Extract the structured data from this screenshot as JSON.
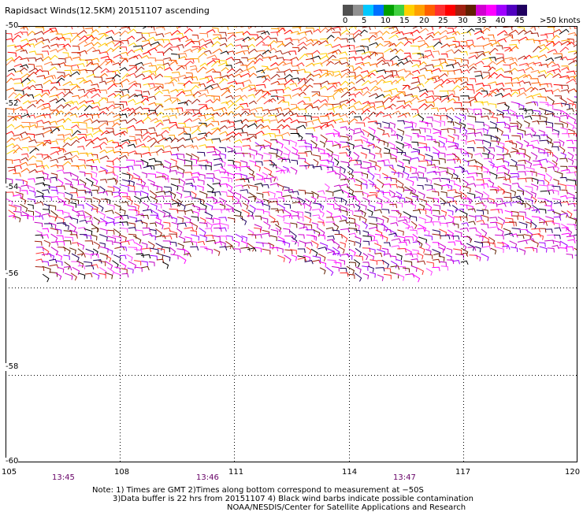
{
  "title": "Rapidsact Winds(12.5KM) 20151107 ascending",
  "legend": {
    "ticks": [
      "0",
      "5",
      "10",
      "15",
      "20",
      "25",
      "30",
      "35",
      "40",
      "45",
      ">50 knots"
    ],
    "colors": [
      "#505050",
      "#909090",
      "#00c8ff",
      "#0070ff",
      "#00a000",
      "#40d040",
      "#ffd000",
      "#ffa000",
      "#ff6000",
      "#ff3030",
      "#ff0000",
      "#a02010",
      "#602000",
      "#d000d0",
      "#ff00ff",
      "#a000ff",
      "#5000c0",
      "#200060"
    ]
  },
  "axes": {
    "lat_labels": [
      "-50",
      "-52",
      "-54",
      "-56",
      "-58",
      "-60"
    ],
    "lon_labels": [
      "105",
      "108",
      "111",
      "114",
      "117",
      "120"
    ],
    "time_labels": [
      "13:45",
      "13:46",
      "13:47"
    ]
  },
  "notes": {
    "line1": "Note: 1) Times are GMT 2)Times along bottom correspond to measurement at −50S",
    "line2": "3)Data buffer is 22 hrs from 20151107 4) Black wind barbs indicate possible contamination",
    "line3": "NOAA/NESDIS/Center for Satellite Applications and Research"
  }
}
